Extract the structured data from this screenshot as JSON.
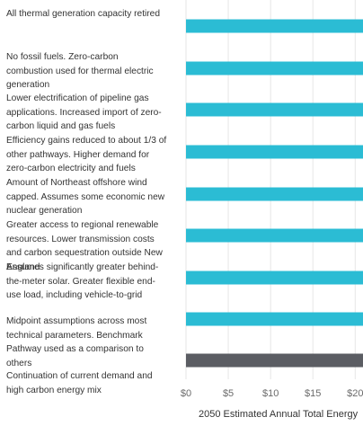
{
  "chart_data": {
    "type": "bar",
    "orientation": "horizontal",
    "xlabel": "2050 Estimated Annual Total Energy",
    "xlim": [
      0,
      20.5
    ],
    "x_ticks": [
      "$0",
      "$5",
      "$10",
      "$15",
      "$20"
    ],
    "x_tick_values": [
      0,
      5,
      10,
      15,
      20
    ],
    "grid": true,
    "categories": [
      "All thermal generation capacity retired",
      "No fossil fuels. Zero-carbon combustion used for thermal electric generation",
      "Lower electrification of pipeline gas applications. Increased import of zero-carbon liquid and gas fuels",
      "Efficiency gains reduced to about 1/3 of other pathways. Higher demand for zero-carbon electricity and fuels",
      "Amount of Northeast offshore wind capped. Assumes some economic new nuclear generation",
      "Greater access to regional renewable resources. Lower transmission costs and carbon sequestration outside New England",
      "Assumes significantly greater behind-the-meter solar. Greater flexible end-use load, including vehicle-to-grid",
      "Midpoint assumptions across most technical parameters. Benchmark Pathway used as a comparison to others",
      "Continuation of current demand and high carbon energy mix"
    ],
    "label_lines": [
      [
        "All thermal generation capacity retired"
      ],
      [
        "No fossil fuels. Zero-carbon",
        "combustion used for thermal electric",
        "generation"
      ],
      [
        "Lower electrification of pipeline gas",
        "applications. Increased import of zero-",
        "carbon liquid and gas fuels"
      ],
      [
        "Efficiency gains reduced to about 1/3 of",
        "other pathways. Higher demand for",
        "zero-carbon electricity and fuels"
      ],
      [
        "Amount of Northeast offshore wind",
        "capped. Assumes some economic new",
        "nuclear generation"
      ],
      [
        "Greater access to regional renewable",
        "resources. Lower transmission costs",
        "and carbon sequestration outside New",
        "England"
      ],
      [
        "Assumes significantly greater behind-",
        "the-meter solar. Greater flexible end-",
        "use load, including vehicle-to-grid"
      ],
      [
        "Midpoint assumptions across most",
        "technical parameters. Benchmark",
        "Pathway used as a comparison to",
        "others"
      ],
      [
        "Continuation of current demand and",
        "high carbon energy mix"
      ]
    ],
    "values": [
      21,
      21,
      21,
      21,
      21,
      21,
      21,
      21,
      21
    ],
    "bar_colors": [
      "#2bbcd4",
      "#2bbcd4",
      "#2bbcd4",
      "#2bbcd4",
      "#2bbcd4",
      "#2bbcd4",
      "#2bbcd4",
      "#2bbcd4",
      "#5b5d63"
    ]
  },
  "colors": {
    "accent_bar": "#2bbcd4",
    "reference_bar": "#5b5d63",
    "gridline": "#e6e6e6",
    "label_text": "#333333",
    "tick_text": "#6b6b6b"
  }
}
